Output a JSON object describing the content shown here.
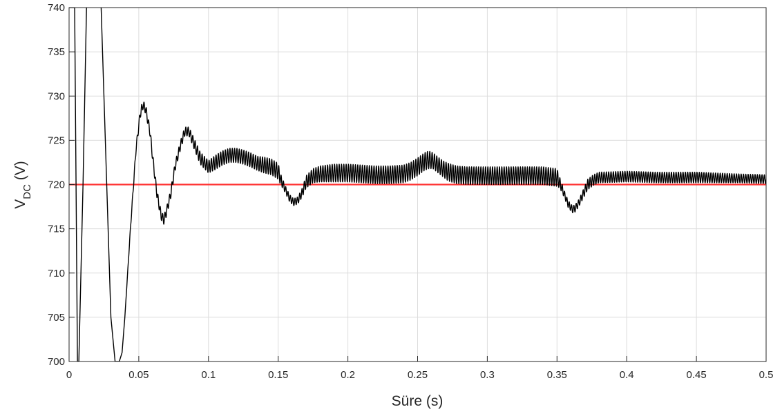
{
  "chart_data": {
    "type": "line",
    "title": "",
    "xlabel": "Süre (s)",
    "ylabel_main": "V",
    "ylabel_sub": "DC",
    "ylabel_unit": " (V)",
    "xlim": [
      0,
      0.5
    ],
    "ylim": [
      700,
      740
    ],
    "xticks": [
      0,
      0.05,
      0.1,
      0.15,
      0.2,
      0.25,
      0.3,
      0.35,
      0.4,
      0.45,
      0.5
    ],
    "xtick_labels": [
      "0",
      "0.05",
      "0.1",
      "0.15",
      "0.2",
      "0.25",
      "0.3",
      "0.35",
      "0.4",
      "0.45",
      "0.5"
    ],
    "yticks": [
      700,
      705,
      710,
      715,
      720,
      725,
      730,
      735,
      740
    ],
    "ytick_labels": [
      "700",
      "705",
      "710",
      "715",
      "720",
      "725",
      "730",
      "735",
      "740"
    ],
    "grid": true,
    "colors": {
      "measured": "#000000",
      "reference": "#ff3333",
      "grid": "#dcdcdc",
      "axes": "#262626"
    },
    "series": [
      {
        "style": "reference",
        "x": [
          0,
          0.5
        ],
        "y": [
          720,
          720
        ]
      },
      {
        "style": "measured",
        "ripple_freq_hz": 600,
        "x": [
          0.0,
          0.002,
          0.004,
          0.006,
          0.007,
          0.01,
          0.015,
          0.02,
          0.023,
          0.025,
          0.027,
          0.03,
          0.033,
          0.036,
          0.038,
          0.04,
          0.044,
          0.048,
          0.051,
          0.053,
          0.055,
          0.058,
          0.06,
          0.063,
          0.066,
          0.068,
          0.07,
          0.073,
          0.076,
          0.08,
          0.083,
          0.086,
          0.09,
          0.094,
          0.097,
          0.1,
          0.105,
          0.11,
          0.115,
          0.12,
          0.125,
          0.13,
          0.135,
          0.14,
          0.145,
          0.15,
          0.152,
          0.155,
          0.158,
          0.161,
          0.164,
          0.167,
          0.17,
          0.175,
          0.18,
          0.19,
          0.2,
          0.21,
          0.22,
          0.23,
          0.24,
          0.245,
          0.25,
          0.255,
          0.258,
          0.261,
          0.264,
          0.268,
          0.272,
          0.278,
          0.285,
          0.3,
          0.32,
          0.34,
          0.35,
          0.352,
          0.355,
          0.358,
          0.361,
          0.363,
          0.366,
          0.369,
          0.372,
          0.376,
          0.38,
          0.4,
          0.42,
          0.45,
          0.48,
          0.5
        ],
        "y": [
          740,
          740,
          740,
          700,
          700,
          720,
          760,
          760,
          740,
          730,
          720,
          705,
          700,
          700,
          701,
          705,
          715,
          724,
          728,
          729,
          728.5,
          726,
          723,
          719,
          716.5,
          716,
          717,
          719,
          722,
          724.5,
          726,
          726,
          724.5,
          723,
          722.5,
          722,
          722.5,
          723,
          723.3,
          723.3,
          723.1,
          722.8,
          722.4,
          722.2,
          722,
          721.5,
          720.5,
          719.5,
          718.5,
          718,
          718.2,
          719,
          720.3,
          721,
          721.2,
          721.3,
          721.3,
          721.2,
          721.1,
          721.1,
          721.2,
          721.5,
          722,
          722.6,
          722.8,
          722.7,
          722.3,
          721.8,
          721.4,
          721.1,
          721,
          721,
          721,
          721,
          720.8,
          720.2,
          719,
          717.8,
          717.2,
          717.3,
          718,
          719,
          720,
          720.5,
          720.8,
          720.9,
          720.8,
          720.8,
          720.7,
          720.6
        ],
        "ripple_amp": [
          0,
          0,
          0,
          0,
          0,
          0,
          0,
          0,
          0,
          0,
          0,
          0,
          0,
          0,
          0,
          0,
          0.2,
          0.4,
          0.5,
          0.5,
          0.5,
          0.5,
          0.5,
          0.5,
          0.5,
          0.5,
          0.5,
          0.5,
          0.5,
          0.5,
          0.5,
          0.5,
          0.6,
          0.7,
          0.7,
          0.7,
          0.8,
          0.8,
          0.8,
          0.8,
          0.8,
          0.8,
          0.8,
          0.9,
          0.9,
          0.9,
          0.6,
          0.4,
          0.4,
          0.4,
          0.4,
          0.5,
          0.7,
          0.8,
          0.9,
          1.0,
          1.0,
          1.0,
          1.0,
          1.0,
          1.0,
          1.0,
          1.0,
          1.0,
          1.0,
          0.9,
          0.9,
          0.9,
          1.0,
          1.0,
          1.0,
          1.0,
          1.0,
          1.0,
          1.0,
          0.6,
          0.4,
          0.4,
          0.4,
          0.4,
          0.4,
          0.5,
          0.6,
          0.6,
          0.6,
          0.6,
          0.6,
          0.6,
          0.5,
          0.5
        ]
      }
    ]
  }
}
